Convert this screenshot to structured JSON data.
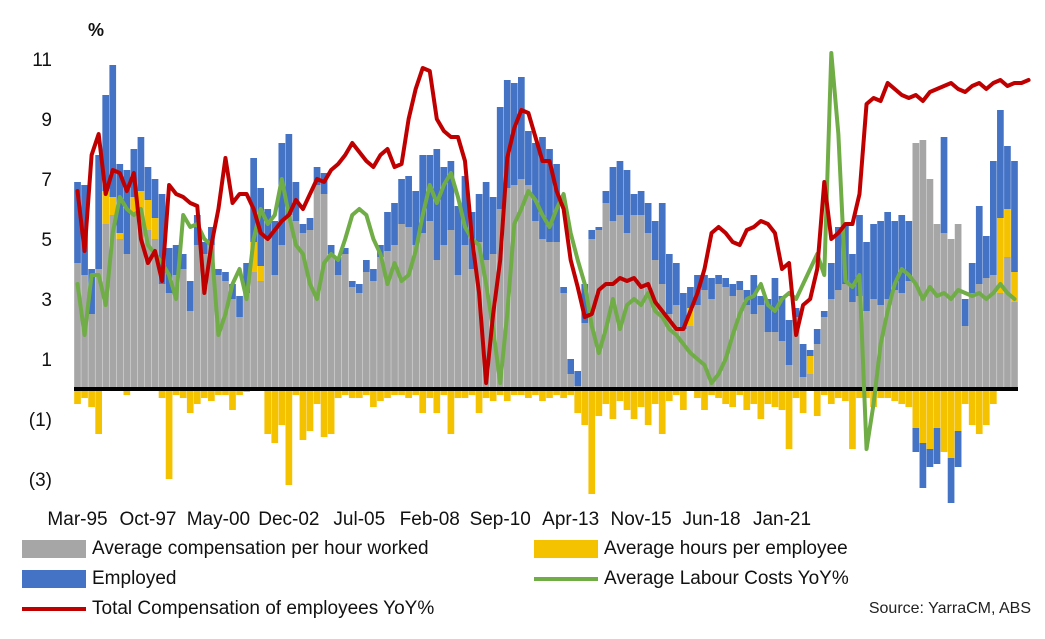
{
  "chart_data": {
    "type": "bar+line",
    "unit_label": "%",
    "ylim": [
      -3.3,
      11.5
    ],
    "yticks": [
      {
        "value": 11,
        "label": "11"
      },
      {
        "value": 9,
        "label": "9"
      },
      {
        "value": 7,
        "label": "7"
      },
      {
        "value": 5,
        "label": "5"
      },
      {
        "value": 3,
        "label": "3"
      },
      {
        "value": 1,
        "label": "1"
      },
      {
        "value": -1,
        "label": "(1)"
      },
      {
        "value": -3,
        "label": "(3)"
      }
    ],
    "x_start": "Mar-95",
    "x_frequency": "quarterly",
    "xticks": [
      "Mar-95",
      "Oct-97",
      "May-00",
      "Dec-02",
      "Jul-05",
      "Feb-08",
      "Sep-10",
      "Apr-13",
      "Nov-15",
      "Jun-18",
      "Jan-21"
    ],
    "xtick_every": 10,
    "colors": {
      "compensation": "#a6a6a6",
      "hours": "#f5c200",
      "employed": "#4472c4",
      "labour": "#70ad47",
      "total": "#c00000",
      "zero": "#000000"
    },
    "series": [
      {
        "name": "Average compensation per hour worked",
        "kind": "bar",
        "color": "#a6a6a6",
        "values": [
          4.2,
          3.8,
          2.5,
          4.0,
          5.5,
          5.8,
          5.0,
          4.5,
          5.8,
          5.6,
          5.3,
          5.0,
          3.5,
          3.2,
          3.8,
          4.0,
          2.6,
          4.8,
          4.5,
          4.8,
          3.8,
          3.6,
          3.0,
          2.4,
          3.2,
          3.9,
          3.6,
          5.0,
          3.8,
          4.8,
          5.8,
          5.6,
          5.2,
          5.3,
          6.8,
          6.5,
          4.5,
          3.8,
          4.5,
          3.4,
          3.2,
          3.9,
          3.6,
          4.4,
          4.6,
          4.8,
          5.5,
          5.4,
          4.8,
          5.2,
          5.6,
          4.3,
          4.8,
          5.3,
          3.8,
          4.8,
          4.0,
          4.9,
          4.3,
          4.5,
          6.0,
          6.7,
          6.8,
          7.0,
          6.8,
          5.6,
          5.0,
          4.9,
          4.9,
          3.2,
          0.5,
          0.1,
          2.2,
          5.0,
          5.3,
          6.2,
          5.6,
          5.8,
          5.2,
          5.8,
          5.8,
          5.2,
          4.3,
          3.5,
          2.5,
          2.8,
          2.0,
          2.1,
          2.8,
          3.3,
          3.0,
          3.5,
          3.4,
          3.1,
          3.3,
          2.8,
          2.5,
          2.8,
          1.9,
          1.9,
          1.6,
          0.8,
          2.4,
          0.4,
          0.5,
          1.5,
          2.4,
          3.0,
          3.3,
          3.5,
          2.9,
          3.1,
          2.6,
          3.0,
          2.8,
          3.0,
          3.3,
          3.2,
          3.6,
          8.2,
          8.3,
          7.0,
          5.5,
          5.2,
          5.0,
          5.5,
          2.1,
          3.2,
          3.5,
          3.7,
          3.8,
          3.2,
          4.4,
          2.9
        ]
      },
      {
        "name": "Average hours per employee",
        "kind": "bar",
        "color": "#f5c200",
        "values": [
          -0.5,
          -0.3,
          -0.6,
          -1.5,
          1.1,
          0.6,
          0.2,
          -0.2,
          0.6,
          1.0,
          1.0,
          0.7,
          -0.3,
          -3.0,
          -0.2,
          -0.3,
          -0.8,
          -0.5,
          -0.3,
          -0.4,
          -0.2,
          -0.2,
          -0.7,
          -0.2,
          -0.1,
          1.0,
          0.5,
          -1.5,
          -1.8,
          -1.2,
          -3.2,
          -0.2,
          -1.7,
          -1.4,
          -0.5,
          -1.6,
          -1.5,
          -0.3,
          -0.2,
          -0.3,
          -0.3,
          -0.2,
          -0.6,
          -0.4,
          -0.3,
          -0.2,
          -0.2,
          -0.3,
          -0.2,
          -0.8,
          -0.3,
          -0.8,
          -0.2,
          -1.5,
          -0.3,
          -0.3,
          -0.2,
          -0.8,
          -0.3,
          -0.4,
          -0.2,
          -0.4,
          -0.2,
          -0.2,
          -0.3,
          -0.2,
          -0.4,
          -0.3,
          -0.2,
          -0.3,
          -0.2,
          -0.8,
          -1.2,
          -3.5,
          -0.9,
          -0.5,
          -1.0,
          -0.4,
          -0.7,
          -1.0,
          -0.6,
          -1.2,
          -0.5,
          -1.5,
          -0.4,
          -0.2,
          -0.7,
          0.6,
          -0.3,
          -0.7,
          -0.2,
          -0.3,
          -0.5,
          -0.6,
          -0.2,
          -0.7,
          -0.5,
          -1.0,
          -0.5,
          -0.6,
          -0.7,
          -2.0,
          -0.3,
          -0.8,
          0.6,
          -0.9,
          -0.2,
          -0.5,
          -0.3,
          -0.4,
          -2.0,
          -0.3,
          -0.3,
          -0.6,
          -0.3,
          -0.3,
          -0.4,
          -0.5,
          -0.6,
          -1.3,
          -1.8,
          -2.0,
          -1.3,
          -2.1,
          -2.3,
          -1.4,
          -0.5,
          -1.2,
          -1.5,
          -1.2,
          -0.5,
          2.5,
          1.6,
          1.0
        ]
      },
      {
        "name": "Employed",
        "kind": "bar",
        "color": "#4472c4",
        "values": [
          2.7,
          3.0,
          1.5,
          3.8,
          3.2,
          4.4,
          2.3,
          2.8,
          1.6,
          1.8,
          1.1,
          1.3,
          3.0,
          1.5,
          1.0,
          0.5,
          1.0,
          1.0,
          0.4,
          0.6,
          0.2,
          0.3,
          0.5,
          0.7,
          1.0,
          2.8,
          2.6,
          1.0,
          1.8,
          3.4,
          2.7,
          1.3,
          0.3,
          0.4,
          0.6,
          0.7,
          0.3,
          0.6,
          0.2,
          0.2,
          0.3,
          0.4,
          0.4,
          0.4,
          1.3,
          1.4,
          1.5,
          1.7,
          1.8,
          2.6,
          2.2,
          3.7,
          2.6,
          2.3,
          2.3,
          2.3,
          1.9,
          1.6,
          2.6,
          1.9,
          3.4,
          3.6,
          3.4,
          3.4,
          1.8,
          2.6,
          3.4,
          3.1,
          2.6,
          0.2,
          0.5,
          0.5,
          1.3,
          0.3,
          0.1,
          0.4,
          1.8,
          1.8,
          2.1,
          0.7,
          0.8,
          1.0,
          1.3,
          2.7,
          2.0,
          1.4,
          1.2,
          0.7,
          1.0,
          0.5,
          0.7,
          0.3,
          0.3,
          0.4,
          0.3,
          0.5,
          1.3,
          0.3,
          1.1,
          1.8,
          1.5,
          1.5,
          0.3,
          1.1,
          0.2,
          0.5,
          0.2,
          1.2,
          2.1,
          2.0,
          1.6,
          2.7,
          2.3,
          2.5,
          2.8,
          2.9,
          2.3,
          2.6,
          2.0,
          -0.8,
          -1.5,
          -0.6,
          -1.2,
          3.2,
          -1.5,
          -1.2,
          0.9,
          1.0,
          2.6,
          1.4,
          3.8,
          3.6,
          2.1,
          3.7
        ]
      },
      {
        "name": "Average Labour Costs YoY%",
        "kind": "line",
        "color": "#70ad47",
        "values": [
          3.5,
          1.8,
          3.8,
          3.8,
          2.8,
          5.2,
          6.4,
          6.0,
          5.8,
          6.0,
          4.8,
          4.5,
          4.2,
          3.8,
          3.0,
          5.8,
          5.4,
          5.5,
          5.0,
          4.8,
          1.8,
          2.5,
          3.5,
          4.0,
          3.0,
          5.0,
          6.0,
          5.5,
          5.8,
          7.0,
          5.8,
          4.8,
          4.5,
          3.5,
          3.0,
          4.2,
          4.5,
          4.3,
          5.0,
          5.8,
          6.0,
          5.8,
          5.0,
          4.5,
          3.5,
          4.2,
          3.6,
          3.8,
          4.6,
          5.8,
          6.8,
          6.2,
          6.8,
          7.2,
          6.4,
          5.4,
          5.0,
          4.8,
          3.5,
          2.0,
          0.2,
          2.5,
          5.5,
          6.0,
          6.6,
          6.3,
          5.8,
          5.4,
          6.0,
          6.5,
          5.2,
          4.3,
          3.5,
          2.1,
          1.2,
          2.0,
          3.0,
          2.0,
          2.8,
          3.0,
          2.8,
          3.2,
          2.6,
          2.4,
          2.0,
          1.8,
          1.5,
          1.2,
          1.0,
          0.8,
          0.2,
          0.5,
          1.0,
          1.8,
          2.5,
          3.0,
          3.1,
          3.5,
          2.8,
          2.6,
          3.0,
          3.2,
          3.0,
          3.5,
          4.0,
          4.5,
          3.8,
          11.2,
          8.5,
          3.6,
          3.4,
          3.8,
          -2.0,
          -0.5,
          1.5,
          2.6,
          3.5,
          4.0,
          3.8,
          3.5,
          3.0,
          3.4,
          3.1,
          3.2,
          3.0,
          3.3,
          3.2,
          3.1,
          3.2,
          3.0,
          3.2,
          3.5,
          3.2,
          3.0
        ]
      },
      {
        "name": "Total Compensation of employees YoY%",
        "kind": "line",
        "color": "#c00000",
        "values": [
          6.6,
          4.6,
          7.8,
          8.5,
          6.5,
          7.3,
          7.2,
          6.6,
          7.2,
          5.0,
          4.2,
          4.6,
          3.6,
          6.8,
          6.5,
          6.4,
          6.2,
          6.1,
          3.2,
          4.8,
          6.0,
          7.7,
          6.2,
          6.5,
          6.5,
          6.0,
          5.2,
          5.0,
          5.3,
          5.6,
          5.8,
          6.3,
          6.0,
          6.5,
          7.0,
          6.9,
          7.3,
          7.5,
          7.8,
          8.2,
          7.9,
          7.6,
          7.4,
          7.8,
          8.0,
          7.4,
          7.5,
          9.0,
          10.0,
          10.7,
          10.6,
          9.0,
          8.6,
          8.4,
          8.4,
          7.6,
          5.0,
          3.2,
          0.2,
          2.5,
          4.3,
          7.7,
          8.7,
          9.3,
          9.2,
          8.4,
          7.6,
          7.6,
          6.6,
          6.0,
          4.3,
          3.4,
          2.4,
          2.5,
          3.3,
          3.5,
          3.5,
          3.7,
          3.6,
          3.7,
          3.4,
          3.5,
          2.9,
          2.6,
          2.3,
          2.0,
          2.0,
          2.6,
          3.2,
          4.0,
          5.2,
          5.4,
          5.2,
          4.9,
          4.8,
          5.3,
          5.4,
          5.6,
          5.5,
          5.2,
          4.0,
          4.2,
          1.8,
          2.8,
          3.0,
          4.0,
          6.9,
          5.0,
          5.2,
          5.5,
          5.5,
          6.5,
          9.5,
          9.7,
          9.6,
          10.2,
          10.0,
          9.8,
          9.7,
          9.8,
          9.6,
          9.9,
          10.0,
          10.1,
          10.2,
          10.0,
          9.9,
          10.1,
          10.2,
          10.0,
          10.2,
          10.3,
          10.1,
          10.2,
          10.2,
          10.3
        ]
      }
    ]
  },
  "legend": [
    {
      "label": "Average compensation per hour worked",
      "color": "#a6a6a6",
      "kind": "box"
    },
    {
      "label": "Average hours per employee",
      "color": "#f5c200",
      "kind": "box"
    },
    {
      "label": "Employed",
      "color": "#4472c4",
      "kind": "box"
    },
    {
      "label": "Average Labour Costs YoY%",
      "color": "#70ad47",
      "kind": "line"
    },
    {
      "label": "Total Compensation of employees YoY%",
      "color": "#c00000",
      "kind": "line"
    }
  ],
  "source": "Source: YarraCM, ABS"
}
